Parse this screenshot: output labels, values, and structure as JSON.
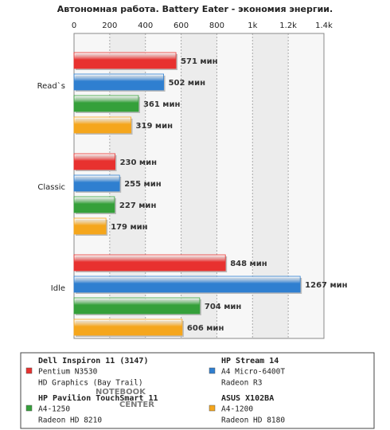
{
  "chart_data": {
    "type": "bar",
    "orientation": "horizontal",
    "title": "Автономная работа. Battery Eater - экономия энергии.",
    "categories": [
      "Read`s",
      "Classic",
      "Idle"
    ],
    "xlim": [
      0,
      1400
    ],
    "xticks": [
      0,
      200,
      400,
      600,
      800,
      {
        "value": 1000,
        "label": "1k"
      },
      {
        "value": 1200,
        "label": "1.2k"
      },
      {
        "value": 1400,
        "label": "1.4k"
      }
    ],
    "grid": true,
    "series": [
      {
        "name": "Dell Inspiron 11 (3147)",
        "details": [
          "Pentium N3530",
          "HD Graphics (Bay Trail)"
        ],
        "color": "#e8312f",
        "values": [
          571,
          230,
          848
        ],
        "value_labels": [
          "571 мин",
          "230 мин",
          "848 мин"
        ]
      },
      {
        "name": "HP Stream 14",
        "details": [
          "A4 Micro-6400T",
          "Radeon R3"
        ],
        "color": "#2f7fd0",
        "values": [
          502,
          255,
          1267
        ],
        "value_labels": [
          "502 мин",
          "255 мин",
          "1267 мин"
        ]
      },
      {
        "name": "HP Pavilion TouchSmart 11",
        "details": [
          "A4-1250",
          "Radeon HD 8210"
        ],
        "color": "#35a03a",
        "values": [
          361,
          227,
          704
        ],
        "value_labels": [
          "361 мин",
          "227 мин",
          "704 мин"
        ]
      },
      {
        "name": "ASUS X102BA",
        "details": [
          "A4-1200",
          "Radeon HD 8180"
        ],
        "color": "#f5a61c",
        "values": [
          319,
          179,
          606
        ],
        "value_labels": [
          "319 мин",
          "179 мин",
          "606 мин"
        ]
      }
    ],
    "watermark": [
      "NOTEBOOK",
      "CENTER"
    ]
  }
}
